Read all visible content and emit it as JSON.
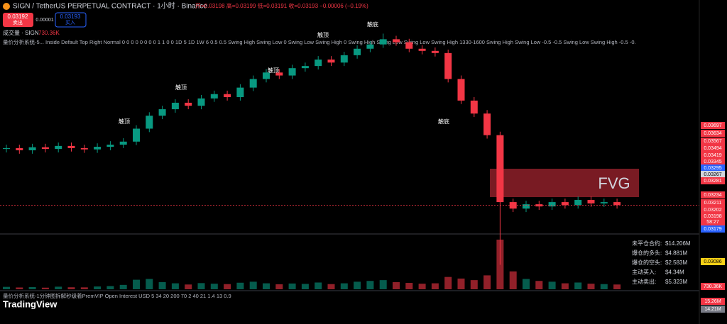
{
  "chart_data": {
    "type": "candlestick",
    "title": "SIGN / TetherUS PERPETUAL CONTRACT · 1小时 · Binance",
    "ohlc_text": "开=0.03198 高=0.03199 低=0.03191 收=0.03193 −0.00006 (−0.19%)",
    "sell_button": {
      "price": "0.03192",
      "label": "卖出"
    },
    "spread": "0.00001",
    "buy_button": {
      "price": "0.03193",
      "label": "买入"
    },
    "volume_legend": "成交量 · SIGN",
    "volume_legend_value": "730.36K",
    "indicator_text": "量价分析系统-5...   Inside Default Top Right Normal 0 0 0 0 0 0 0 0 1 1 0 0 1D 5 1D 1W 6 0.5 0.5 Swing High Swing Low 0 Swing Low Swing High 0 Swing High Swing Low Swing Low Swing High 1330-1600 Swing High Swing Low -0.5 -0.5 Swing Low Swing High -0.5 -0.",
    "fvg_label": "FVG",
    "annotations": [
      "触顶",
      "触顶",
      "触顶",
      "触顶",
      "触底",
      "触底"
    ],
    "ylim": [
      0.03,
      0.0364
    ],
    "up_color": "#089981",
    "down_color": "#f23645",
    "open": [
      0.03328,
      0.0333,
      0.03325,
      0.03332,
      0.03328,
      0.03335,
      0.0333,
      0.03327,
      0.03333,
      0.03338,
      0.03345,
      0.03375,
      0.03405,
      0.0342,
      0.03435,
      0.03428,
      0.03445,
      0.03455,
      0.03448,
      0.0347,
      0.0349,
      0.03505,
      0.03498,
      0.03515,
      0.0352,
      0.03535,
      0.03528,
      0.03545,
      0.0356,
      0.0357,
      0.03582,
      0.03575,
      0.0356,
      0.03555,
      0.0355,
      0.0349,
      0.0344,
      0.0341,
      0.0336,
      0.03205,
      0.0319,
      0.032,
      0.03195,
      0.03205,
      0.03198,
      0.0321,
      0.03202,
      0.03205
    ],
    "high": [
      0.03338,
      0.03338,
      0.0334,
      0.0334,
      0.03343,
      0.03343,
      0.03338,
      0.03341,
      0.03346,
      0.03353,
      0.03383,
      0.03413,
      0.03428,
      0.03443,
      0.03443,
      0.03453,
      0.03463,
      0.03463,
      0.03478,
      0.03498,
      0.03513,
      0.03513,
      0.03523,
      0.03528,
      0.03543,
      0.03543,
      0.03553,
      0.03568,
      0.03578,
      0.03595,
      0.0359,
      0.03583,
      0.03568,
      0.03563,
      0.03558,
      0.03498,
      0.03448,
      0.03418,
      0.03368,
      0.03213,
      0.03208,
      0.03208,
      0.03213,
      0.03213,
      0.03218,
      0.03218,
      0.03213,
      0.03213
    ],
    "low": [
      0.0332,
      0.03317,
      0.03317,
      0.0332,
      0.0332,
      0.03322,
      0.03319,
      0.03319,
      0.03325,
      0.0333,
      0.03337,
      0.03367,
      0.03397,
      0.03412,
      0.0342,
      0.0342,
      0.03437,
      0.0344,
      0.0344,
      0.03462,
      0.03482,
      0.0349,
      0.0349,
      0.03507,
      0.03512,
      0.0352,
      0.0352,
      0.03537,
      0.03552,
      0.03562,
      0.03567,
      0.03552,
      0.03547,
      0.03542,
      0.03482,
      0.03432,
      0.03402,
      0.03352,
      0.0306,
      0.03182,
      0.03182,
      0.03187,
      0.03187,
      0.0319,
      0.0319,
      0.03194,
      0.03194,
      0.0319
    ],
    "close": [
      0.0333,
      0.03325,
      0.03332,
      0.03328,
      0.03335,
      0.0333,
      0.03327,
      0.03333,
      0.03338,
      0.03345,
      0.03375,
      0.03405,
      0.0342,
      0.03435,
      0.03428,
      0.03445,
      0.03455,
      0.03448,
      0.0347,
      0.0349,
      0.03505,
      0.03498,
      0.03515,
      0.0352,
      0.03535,
      0.03528,
      0.03545,
      0.0356,
      0.0357,
      0.03582,
      0.03575,
      0.0356,
      0.03555,
      0.0355,
      0.0349,
      0.0344,
      0.0341,
      0.0336,
      0.03205,
      0.0319,
      0.032,
      0.03195,
      0.03205,
      0.03198,
      0.0321,
      0.03202,
      0.03205,
      0.03198
    ],
    "volume": [
      120,
      90,
      110,
      80,
      130,
      100,
      95,
      140,
      160,
      220,
      480,
      520,
      360,
      300,
      240,
      310,
      280,
      260,
      330,
      380,
      300,
      250,
      290,
      270,
      340,
      260,
      300,
      380,
      420,
      460,
      360,
      320,
      280,
      300,
      620,
      540,
      460,
      700,
      2500,
      900,
      520,
      420,
      380,
      300,
      340,
      280,
      260,
      240
    ],
    "price_tags": [
      {
        "label": "0.03697",
        "color": "#f23645"
      },
      {
        "label": "0.03634",
        "color": "#f23645"
      },
      {
        "label": "0.03567",
        "color": "#f23645"
      },
      {
        "label": "0.03494",
        "color": "#f23645"
      },
      {
        "label": "0.03419",
        "color": "#f23645"
      },
      {
        "label": "0.03345",
        "color": "#f23645"
      },
      {
        "label": "0.03295",
        "color": "#2962ff"
      },
      {
        "label": "0.03267",
        "color": "#d1d4dc"
      },
      {
        "label": "0.03281",
        "color": "#f23645"
      },
      {
        "label": "0.03234",
        "color": "#f23645"
      },
      {
        "label": "0.03211",
        "color": "#f23645"
      },
      {
        "label": "0.03202",
        "color": "#f23645"
      },
      {
        "label": "0.03198",
        "color": "#f23645"
      },
      {
        "label": "58:27",
        "color": "#f23645"
      },
      {
        "label": "0.03179",
        "color": "#2962ff"
      },
      {
        "label": "0.03086",
        "color": "#f7d117"
      }
    ],
    "info_box": [
      {
        "label": "未平仓合约:",
        "value": "$14.206M"
      },
      {
        "label": "爆仓的多头:",
        "value": "$4.881M"
      },
      {
        "label": "爆仓的空头:",
        "value": "$2.583M"
      },
      {
        "label": "主动买入:",
        "value": "$4.34M"
      },
      {
        "label": "主动卖出:",
        "value": "$5.323M"
      }
    ],
    "oi_indicator_text": "量价分析系统-1分钟图拆解秒级着PremVIP Open Interest USD 5 34 20 200 70 2 40 21 1.4 13 0.9",
    "volume_tag": "730.36K",
    "oi_tags": [
      "15.26M",
      "14.21M"
    ],
    "brand": "TradingView"
  }
}
